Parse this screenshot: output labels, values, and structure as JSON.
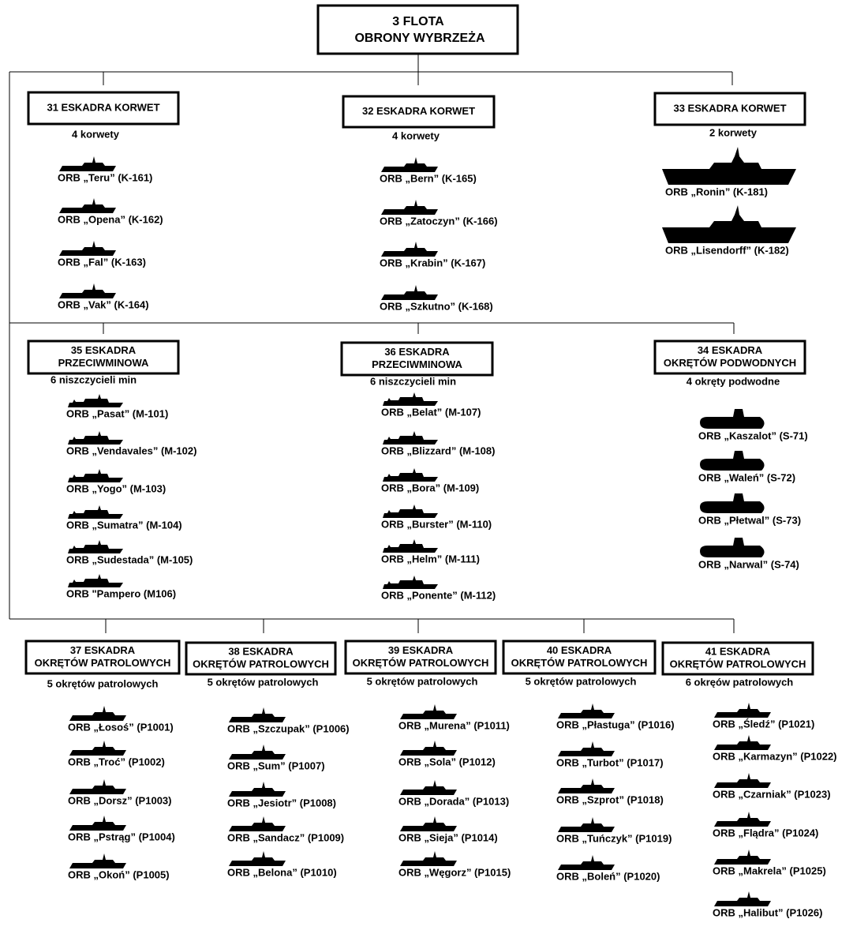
{
  "root": {
    "title_lines": [
      "3 FLOTA",
      "OBRONY WYBRZEŻA"
    ]
  },
  "squadrons": [
    {
      "name_lines": [
        "31 ESKADRA KORWET"
      ],
      "count": "4 korwety",
      "ships": [
        "ORB „Teru” (K-161)",
        "ORB „Opena” (K-162)",
        "ORB „Fal” (K-163)",
        "ORB „Vak” (K-164)"
      ]
    },
    {
      "name_lines": [
        "32 ESKADRA KORWET"
      ],
      "count": "4 korwety",
      "ships": [
        "ORB „Bern” (K-165)",
        "ORB „Zatoczyn” (K-166)",
        "ORB „Krabin” (K-167)",
        "ORB „Szkutno” (K-168)"
      ]
    },
    {
      "name_lines": [
        "33 ESKADRA KORWET"
      ],
      "count": "2 korwety",
      "ships": [
        "ORB „Ronin” (K-181)",
        "ORB „Lisendorff” (K-182)"
      ]
    },
    {
      "name_lines": [
        "35 ESKADRA",
        "PRZECIWMINOWA"
      ],
      "count": "6 niszczycieli min",
      "ships": [
        "ORB „Pasat” (M-101)",
        "ORB „Vendavales” (M-102)",
        "ORB „Yogo” (M-103)",
        "ORB „Sumatra” (M-104)",
        "ORB „Sudestada” (M-105)",
        "ORB \"Pampero (M106)"
      ]
    },
    {
      "name_lines": [
        "36 ESKADRA",
        "PRZECIWMINOWA"
      ],
      "count": "6 niszczycieli min",
      "ships": [
        "ORB „Belat” (M-107)",
        "ORB „Blizzard” (M-108)",
        "ORB „Bora” (M-109)",
        "ORB „Burster” (M-110)",
        "ORB „Helm” (M-111)",
        "ORB „Ponente” (M-112)"
      ]
    },
    {
      "name_lines": [
        "34 ESKADRA",
        "OKRĘTÓW PODWODNYCH"
      ],
      "count": "4 okręty podwodne",
      "ships": [
        "ORB „Kaszalot” (S-71)",
        "ORB „Waleń” (S-72)",
        "ORB „Płetwal” (S-73)",
        "ORB „Narwal” (S-74)"
      ]
    },
    {
      "name_lines": [
        "37 ESKADRA",
        "OKRĘTÓW PATROLOWYCH"
      ],
      "count": "5 okrętów patrolowych",
      "ships": [
        "ORB „Łosoś” (P1001)",
        "ORB „Troć” (P1002)",
        "ORB „Dorsz” (P1003)",
        "ORB „Pstrąg” (P1004)",
        "ORB „Okoń” (P1005)"
      ]
    },
    {
      "name_lines": [
        "38 ESKADRA",
        "OKRĘTÓW PATROLOWYCH"
      ],
      "count": "5 okrętów patrolowych",
      "ships": [
        "ORB „Szczupak” (P1006)",
        "ORB „Sum” (P1007)",
        "ORB „Jesiotr” (P1008)",
        "ORB „Sandacz” (P1009)",
        "ORB „Belona” (P1010)"
      ]
    },
    {
      "name_lines": [
        "39 ESKADRA",
        "OKRĘTÓW PATROLOWYCH"
      ],
      "count": "5 okrętów patrolowych",
      "ships": [
        "ORB „Murena” (P1011)",
        "ORB „Sola” (P1012)",
        "ORB „Dorada” (P1013)",
        "ORB „Sieja” (P1014)",
        "ORB „Węgorz” (P1015)"
      ]
    },
    {
      "name_lines": [
        "40 ESKADRA",
        "OKRĘTÓW PATROLOWYCH"
      ],
      "count": "5 okrętów patrolowych",
      "ships": [
        "ORB „Płastuga” (P1016)",
        "ORB „Turbot” (P1017)",
        "ORB „Szprot” (P1018)",
        "ORB „Tuńczyk” (P1019)",
        "ORB „Boleń” (P1020)"
      ]
    },
    {
      "name_lines": [
        "41 ESKADRA",
        "OKRĘTÓW PATROLOWYCH"
      ],
      "count": "6 okręów patrolowych",
      "ships": [
        "ORB „Śledź” (P1021)",
        "ORB „Karmazyn” (P1022)",
        "ORB „Czarniak” (P1023)",
        "ORB „Flądra” (P1024)",
        "ORB „Makrela” (P1025)",
        "ORB „Halibut” (P1026)"
      ]
    }
  ]
}
